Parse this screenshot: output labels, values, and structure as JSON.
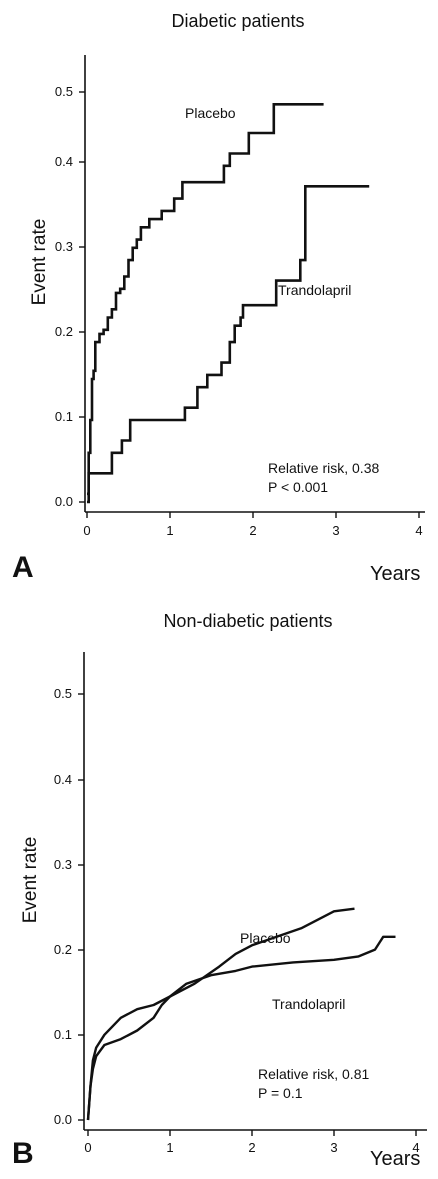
{
  "chart_data": [
    {
      "type": "line",
      "panel_label": "A",
      "title": "Diabetic patients",
      "xlabel": "Years",
      "ylabel": "Event rate",
      "xlim": [
        0,
        4
      ],
      "ylim": [
        0,
        0.5
      ],
      "x_ticks": [
        "0",
        "1",
        "2",
        "3",
        "4"
      ],
      "y_ticks": [
        "0.0",
        "0.1",
        "0.2",
        "0.3",
        "0.4",
        "0.5"
      ],
      "annotation": [
        "Relative risk, 0.38",
        "P < 0.001"
      ],
      "series": [
        {
          "name": "Placebo",
          "step": true,
          "points": [
            [
              0,
              0.01
            ],
            [
              0.02,
              0.06
            ],
            [
              0.04,
              0.1
            ],
            [
              0.06,
              0.15
            ],
            [
              0.08,
              0.16
            ],
            [
              0.1,
              0.195
            ],
            [
              0.15,
              0.205
            ],
            [
              0.2,
              0.21
            ],
            [
              0.25,
              0.225
            ],
            [
              0.3,
              0.235
            ],
            [
              0.35,
              0.255
            ],
            [
              0.4,
              0.26
            ],
            [
              0.45,
              0.275
            ],
            [
              0.5,
              0.295
            ],
            [
              0.55,
              0.31
            ],
            [
              0.6,
              0.32
            ],
            [
              0.65,
              0.335
            ],
            [
              0.75,
              0.345
            ],
            [
              0.9,
              0.355
            ],
            [
              1.05,
              0.37
            ],
            [
              1.15,
              0.39
            ],
            [
              1.65,
              0.41
            ],
            [
              1.72,
              0.425
            ],
            [
              1.95,
              0.45
            ],
            [
              2.25,
              0.485
            ],
            [
              2.85,
              0.485
            ]
          ]
        },
        {
          "name": "Trandolapril",
          "step": true,
          "points": [
            [
              0,
              0.0
            ],
            [
              0.02,
              0.035
            ],
            [
              0.3,
              0.06
            ],
            [
              0.42,
              0.075
            ],
            [
              0.52,
              0.1
            ],
            [
              1.18,
              0.115
            ],
            [
              1.33,
              0.14
            ],
            [
              1.45,
              0.155
            ],
            [
              1.62,
              0.17
            ],
            [
              1.72,
              0.195
            ],
            [
              1.78,
              0.215
            ],
            [
              1.85,
              0.225
            ],
            [
              1.88,
              0.24
            ],
            [
              2.28,
              0.27
            ],
            [
              2.57,
              0.295
            ],
            [
              2.63,
              0.385
            ],
            [
              3.4,
              0.385
            ]
          ]
        }
      ]
    },
    {
      "type": "line",
      "panel_label": "B",
      "title": "Non-diabetic patients",
      "xlabel": "Years",
      "ylabel": "Event rate",
      "xlim": [
        0,
        4
      ],
      "ylim": [
        0,
        0.5
      ],
      "x_ticks": [
        "0",
        "1",
        "2",
        "3",
        "4"
      ],
      "y_ticks": [
        "0.0",
        "0.1",
        "0.2",
        "0.3",
        "0.4",
        "0.5"
      ],
      "annotation": [
        "Relative risk,  0.81",
        "P = 0.1"
      ],
      "series": [
        {
          "name": "Placebo",
          "step": false,
          "points": [
            [
              0,
              0.0
            ],
            [
              0.03,
              0.04
            ],
            [
              0.06,
              0.06
            ],
            [
              0.1,
              0.075
            ],
            [
              0.2,
              0.088
            ],
            [
              0.4,
              0.095
            ],
            [
              0.6,
              0.105
            ],
            [
              0.8,
              0.12
            ],
            [
              0.9,
              0.135
            ],
            [
              1.0,
              0.145
            ],
            [
              1.3,
              0.16
            ],
            [
              1.6,
              0.18
            ],
            [
              1.8,
              0.195
            ],
            [
              2.0,
              0.205
            ],
            [
              2.3,
              0.215
            ],
            [
              2.6,
              0.225
            ],
            [
              2.8,
              0.235
            ],
            [
              3.0,
              0.245
            ],
            [
              3.25,
              0.248
            ]
          ]
        },
        {
          "name": "Trandolapril",
          "step": false,
          "points": [
            [
              0,
              0.0
            ],
            [
              0.03,
              0.04
            ],
            [
              0.06,
              0.07
            ],
            [
              0.1,
              0.085
            ],
            [
              0.2,
              0.1
            ],
            [
              0.4,
              0.12
            ],
            [
              0.6,
              0.13
            ],
            [
              0.8,
              0.135
            ],
            [
              1.0,
              0.145
            ],
            [
              1.2,
              0.16
            ],
            [
              1.5,
              0.17
            ],
            [
              1.8,
              0.175
            ],
            [
              2.0,
              0.18
            ],
            [
              2.5,
              0.185
            ],
            [
              3.0,
              0.188
            ],
            [
              3.3,
              0.192
            ],
            [
              3.5,
              0.2
            ],
            [
              3.6,
              0.215
            ],
            [
              3.75,
              0.215
            ]
          ]
        }
      ]
    }
  ]
}
